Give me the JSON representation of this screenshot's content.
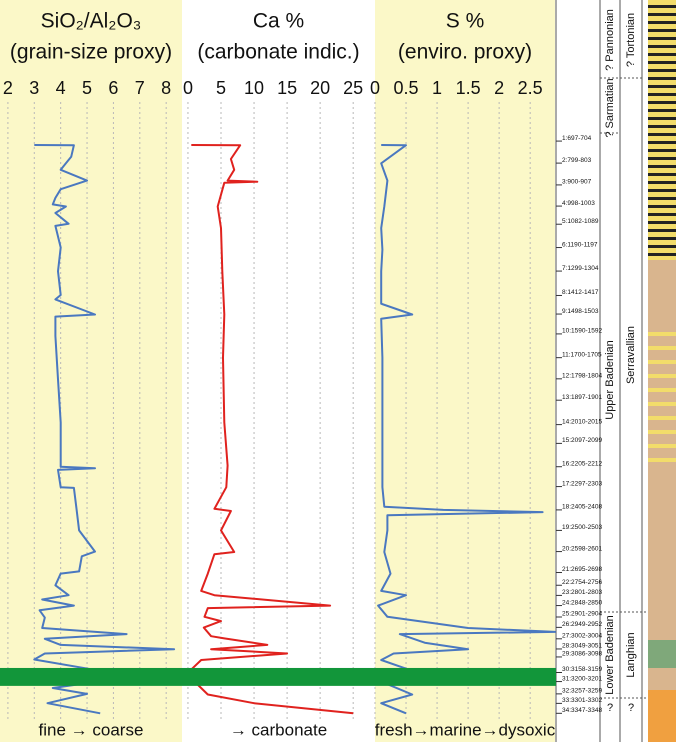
{
  "chart_data": [
    {
      "type": "line",
      "title": [
        "SiO₂/Al₂O₃",
        "(grain-size proxy)"
      ],
      "footer": "fine → coarse",
      "color": "#4a78c0",
      "background": "#fbf8c8",
      "xlim": [
        1.7,
        8.6
      ],
      "xticks": [
        2,
        3,
        4,
        5,
        6,
        7,
        8
      ],
      "ylim": [
        516,
        3378
      ],
      "y_inverted": true,
      "grid": true,
      "depths": [
        715,
        716,
        770,
        800,
        830,
        880,
        920,
        960,
        990,
        1000,
        1030,
        1080,
        1090,
        1190,
        1300,
        1410,
        1430,
        1500,
        1510,
        1600,
        1800,
        2000,
        2205,
        2212,
        2220,
        2300,
        2303,
        2400,
        2500,
        2598,
        2620,
        2690,
        2700,
        2754,
        2800,
        2820,
        2848,
        2870,
        2904,
        2952,
        2980,
        3002,
        3030,
        3050,
        3070,
        3098,
        3150,
        3180,
        3200,
        3230,
        3257,
        3300,
        3347
      ],
      "values": [
        3.0,
        4.5,
        4.4,
        4.2,
        4.0,
        5.0,
        4.0,
        3.8,
        3.7,
        4.2,
        3.8,
        4.3,
        3.8,
        4.0,
        3.9,
        4.0,
        3.8,
        5.3,
        3.8,
        3.8,
        3.9,
        4.0,
        4.0,
        5.3,
        3.9,
        4.0,
        4.5,
        4.6,
        4.7,
        5.3,
        4.8,
        4.7,
        4.0,
        3.8,
        4.3,
        3.3,
        4.5,
        3.2,
        3.4,
        3.3,
        6.5,
        3.4,
        4.0,
        8.3,
        3.4,
        3.0,
        5.5,
        3.5,
        5.4,
        3.7,
        5.0,
        3.5,
        5.5
      ]
    },
    {
      "type": "line",
      "title": [
        "Ca %",
        "(carbonate indic.)"
      ],
      "footer": "→ carbonate",
      "color": "#e0221e",
      "background": "#ffffff",
      "xlim": [
        -0.9,
        28.3
      ],
      "xticks": [
        0,
        5,
        10,
        15,
        20,
        25
      ],
      "ylim": [
        516,
        3378
      ],
      "y_inverted": true,
      "grid": true,
      "depths": [
        715,
        716,
        780,
        830,
        880,
        885,
        890,
        1000,
        1100,
        1300,
        1500,
        1700,
        2000,
        2200,
        2300,
        2400,
        2410,
        2500,
        2600,
        2610,
        2700,
        2780,
        2800,
        2848,
        2860,
        2900,
        2920,
        2950,
        2990,
        3000,
        3030,
        3050,
        3070,
        3100,
        3150,
        3200,
        3260,
        3300,
        3347
      ],
      "values": [
        0.5,
        7.9,
        6.5,
        7.0,
        6.0,
        10.5,
        5.5,
        4.5,
        5.0,
        5.2,
        5.5,
        5.3,
        5.5,
        6.0,
        5.8,
        4.0,
        6.5,
        5.0,
        7.0,
        4.0,
        3.0,
        2.0,
        4.0,
        21.5,
        3.0,
        2.5,
        5.0,
        2.4,
        3.5,
        5.5,
        12.0,
        3.5,
        15.0,
        2.0,
        0.3,
        1.0,
        3.0,
        10.0,
        25.0
      ]
    },
    {
      "type": "line",
      "title": [
        "S %",
        "(enviro. proxy)"
      ],
      "footer": "fresh→marine→dysoxic",
      "color": "#4a78c0",
      "background": "#fbf8c8",
      "xlim": [
        0,
        2.9
      ],
      "xticks": [
        0,
        0.5,
        1,
        1.5,
        2,
        2.5
      ],
      "ylim": [
        516,
        3378
      ],
      "y_inverted": true,
      "grid": true,
      "depths": [
        715,
        716,
        800,
        880,
        1000,
        1100,
        1200,
        1300,
        1450,
        1500,
        1520,
        1700,
        2000,
        2300,
        2390,
        2405,
        2415,
        2430,
        2500,
        2600,
        2700,
        2780,
        2800,
        2848,
        2900,
        2952,
        2970,
        2980,
        3020,
        3050,
        3070,
        3100,
        3150,
        3200,
        3260,
        3300,
        3347
      ],
      "values": [
        0.1,
        0.5,
        0.1,
        0.2,
        0.15,
        0.1,
        0.12,
        0.1,
        0.1,
        0.6,
        0.1,
        0.12,
        0.12,
        0.12,
        0.15,
        1.1,
        2.7,
        0.2,
        0.2,
        0.15,
        0.25,
        0.1,
        0.5,
        0.05,
        0.2,
        1.5,
        2.9,
        0.4,
        0.8,
        1.5,
        0.3,
        0.1,
        0.6,
        0.1,
        0.6,
        0.1,
        0.5
      ]
    }
  ],
  "marker_band": {
    "range": [
      3137,
      3220
    ],
    "color": "#12963a"
  },
  "strat": {
    "samples": [
      {
        "label": "1:697-704",
        "depth": 697
      },
      {
        "label": "2:799-803",
        "depth": 799
      },
      {
        "label": "3:900-907",
        "depth": 900
      },
      {
        "label": "4:998-1003",
        "depth": 998
      },
      {
        "label": "5:1082-1089",
        "depth": 1082
      },
      {
        "label": "6:1190-1197",
        "depth": 1190
      },
      {
        "label": "7:1299-1304",
        "depth": 1299
      },
      {
        "label": "8:1412-1417",
        "depth": 1412
      },
      {
        "label": "9:1498-1503",
        "depth": 1498
      },
      {
        "label": "10:1590-1592",
        "depth": 1590
      },
      {
        "label": "11:1700-1705",
        "depth": 1700
      },
      {
        "label": "12:1798-1804",
        "depth": 1798
      },
      {
        "label": "13:1897-1901",
        "depth": 1897
      },
      {
        "label": "14:2010-2015",
        "depth": 2010
      },
      {
        "label": "15:2097-2099",
        "depth": 2097
      },
      {
        "label": "16:2205-2212",
        "depth": 2205
      },
      {
        "label": "17:2297-2303",
        "depth": 2297
      },
      {
        "label": "18:2405-2408",
        "depth": 2405
      },
      {
        "label": "19:2500-2503",
        "depth": 2500
      },
      {
        "label": "20:2598-2601",
        "depth": 2598
      },
      {
        "label": "21:2695-2698",
        "depth": 2695
      },
      {
        "label": "22:2754-2756",
        "depth": 2754
      },
      {
        "label": "23:2801-2803",
        "depth": 2801
      },
      {
        "label": "24:2848-2850",
        "depth": 2848
      },
      {
        "label": "25:2901-2904",
        "depth": 2901
      },
      {
        "label": "26:2949-2952",
        "depth": 2949
      },
      {
        "label": "27:3002-3004",
        "depth": 3002
      },
      {
        "label": "28:3049-3051",
        "depth": 3049
      },
      {
        "label": "29:3086-3098",
        "depth": 3086
      },
      {
        "label": "30:3158-3159",
        "depth": 3158
      },
      {
        "label": "31:3200-3201",
        "depth": 3200
      },
      {
        "label": "32:3257-3259",
        "depth": 3257
      },
      {
        "label": "33:3301-3302",
        "depth": 3301
      },
      {
        "label": "34:3347-3348",
        "depth": 3347
      }
    ],
    "stages": [
      "? Pannonian",
      "? Tortonian",
      "? Sarmatian",
      "Serravallian",
      "Upper Badenian",
      "Lower Badenian",
      "Langhian",
      "?",
      "?"
    ]
  }
}
